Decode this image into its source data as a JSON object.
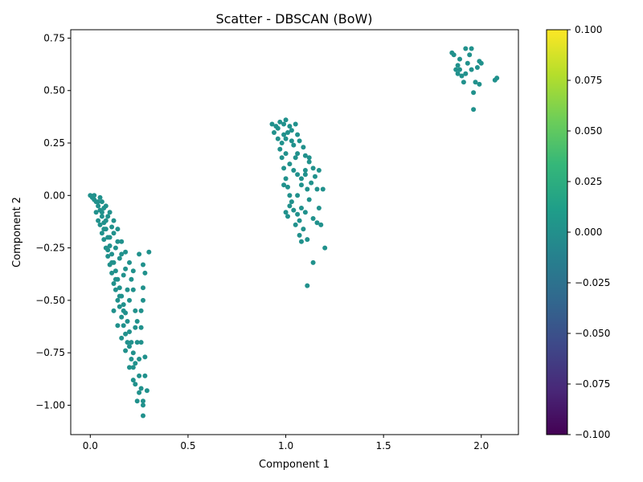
{
  "chart_data": {
    "type": "scatter",
    "title": "Scatter - DBSCAN (BoW)",
    "xlabel": "Component 1",
    "ylabel": "Component 2",
    "xlim": [
      -0.1,
      2.19
    ],
    "ylim": [
      -1.14,
      0.79
    ],
    "xticks": [
      0.0,
      0.5,
      1.0,
      1.5,
      2.0
    ],
    "xtick_labels": [
      "0.0",
      "0.5",
      "1.0",
      "1.5",
      "2.0"
    ],
    "yticks": [
      -1.0,
      -0.75,
      -0.5,
      -0.25,
      0.0,
      0.25,
      0.5,
      0.75
    ],
    "ytick_labels": [
      "−1.00",
      "−0.75",
      "−0.50",
      "−0.25",
      "0.00",
      "0.25",
      "0.50",
      "0.75"
    ],
    "grid": false,
    "marker_color": "#21918c",
    "colorbar": {
      "colormap": "viridis",
      "range": [
        -0.1,
        0.1
      ],
      "ticks": [
        0.1,
        0.075,
        0.05,
        0.025,
        0.0,
        -0.025,
        -0.05,
        -0.075,
        -0.1
      ],
      "tick_labels": [
        "0.100",
        "0.075",
        "0.050",
        "0.025",
        "0.000",
        "−0.025",
        "−0.050",
        "−0.075",
        "−0.100"
      ],
      "colors": [
        "#440154",
        "#482878",
        "#3e4989",
        "#31688e",
        "#26828e",
        "#1f9e89",
        "#35b779",
        "#6ece58",
        "#b5de2b",
        "#fde725"
      ]
    },
    "series": [
      {
        "values": [
          [
            0.0,
            0.0
          ],
          [
            0.01,
            -0.01
          ],
          [
            0.02,
            -0.02
          ],
          [
            0.03,
            -0.03
          ],
          [
            0.04,
            -0.05
          ],
          [
            0.05,
            -0.07
          ],
          [
            0.06,
            -0.1
          ],
          [
            0.07,
            -0.13
          ],
          [
            0.08,
            -0.16
          ],
          [
            0.09,
            -0.2
          ],
          [
            0.1,
            -0.24
          ],
          [
            0.11,
            -0.28
          ],
          [
            0.12,
            -0.32
          ],
          [
            0.13,
            -0.36
          ],
          [
            0.14,
            -0.4
          ],
          [
            0.15,
            -0.44
          ],
          [
            0.16,
            -0.48
          ],
          [
            0.17,
            -0.52
          ],
          [
            0.18,
            -0.56
          ],
          [
            0.19,
            -0.6
          ],
          [
            0.2,
            -0.65
          ],
          [
            0.21,
            -0.7
          ],
          [
            0.22,
            -0.75
          ],
          [
            0.23,
            -0.8
          ],
          [
            0.25,
            -0.86
          ],
          [
            0.26,
            -0.92
          ],
          [
            0.27,
            -0.98
          ],
          [
            0.27,
            -1.05
          ],
          [
            0.02,
            0.0
          ],
          [
            0.05,
            -0.01
          ],
          [
            0.06,
            -0.03
          ],
          [
            0.08,
            -0.05
          ],
          [
            0.1,
            -0.08
          ],
          [
            0.12,
            -0.12
          ],
          [
            0.14,
            -0.16
          ],
          [
            0.16,
            -0.22
          ],
          [
            0.18,
            -0.27
          ],
          [
            0.2,
            -0.32
          ],
          [
            0.22,
            -0.36
          ],
          [
            0.25,
            -0.28
          ],
          [
            0.27,
            -0.33
          ],
          [
            0.28,
            -0.37
          ],
          [
            0.3,
            -0.27
          ],
          [
            0.27,
            -0.44
          ],
          [
            0.27,
            -0.5
          ],
          [
            0.26,
            -0.55
          ],
          [
            0.24,
            -0.6
          ],
          [
            0.26,
            -0.63
          ],
          [
            0.28,
            -0.77
          ],
          [
            0.29,
            -0.93
          ],
          [
            0.28,
            -0.86
          ],
          [
            0.25,
            -0.94
          ],
          [
            0.27,
            -1.0
          ],
          [
            0.04,
            -0.12
          ],
          [
            0.06,
            -0.18
          ],
          [
            0.08,
            -0.25
          ],
          [
            0.1,
            -0.33
          ],
          [
            0.12,
            -0.42
          ],
          [
            0.14,
            -0.5
          ],
          [
            0.16,
            -0.58
          ],
          [
            0.18,
            -0.66
          ],
          [
            0.2,
            -0.72
          ],
          [
            0.22,
            -0.82
          ],
          [
            0.23,
            -0.9
          ],
          [
            0.15,
            -0.3
          ],
          [
            0.17,
            -0.38
          ],
          [
            0.19,
            -0.45
          ],
          [
            0.13,
            -0.25
          ],
          [
            0.11,
            -0.15
          ],
          [
            0.09,
            -0.1
          ],
          [
            0.07,
            -0.06
          ],
          [
            0.03,
            -0.08
          ],
          [
            0.05,
            -0.14
          ],
          [
            0.07,
            -0.21
          ],
          [
            0.09,
            -0.29
          ],
          [
            0.11,
            -0.37
          ],
          [
            0.13,
            -0.45
          ],
          [
            0.15,
            -0.53
          ],
          [
            0.17,
            -0.62
          ],
          [
            0.19,
            -0.7
          ],
          [
            0.21,
            -0.78
          ],
          [
            0.24,
            -0.7
          ],
          [
            0.23,
            -0.55
          ],
          [
            0.22,
            -0.45
          ],
          [
            0.21,
            -0.4
          ],
          [
            0.2,
            -0.5
          ],
          [
            0.18,
            -0.35
          ],
          [
            0.16,
            -0.28
          ],
          [
            0.14,
            -0.22
          ],
          [
            0.12,
            -0.18
          ],
          [
            0.1,
            -0.2
          ],
          [
            0.08,
            -0.12
          ],
          [
            0.06,
            -0.08
          ],
          [
            0.04,
            -0.03
          ],
          [
            0.12,
            -0.55
          ],
          [
            0.14,
            -0.62
          ],
          [
            0.16,
            -0.68
          ],
          [
            0.18,
            -0.74
          ],
          [
            0.2,
            -0.82
          ],
          [
            0.22,
            -0.88
          ],
          [
            0.24,
            -0.98
          ],
          [
            0.25,
            -0.78
          ],
          [
            0.26,
            -0.7
          ],
          [
            0.23,
            -0.63
          ],
          [
            0.17,
            -0.55
          ],
          [
            0.15,
            -0.48
          ],
          [
            0.13,
            -0.4
          ],
          [
            0.11,
            -0.32
          ],
          [
            0.09,
            -0.26
          ],
          [
            0.07,
            -0.16
          ],
          [
            0.93,
            0.34
          ],
          [
            0.95,
            0.33
          ],
          [
            0.97,
            0.35
          ],
          [
            0.99,
            0.34
          ],
          [
            1.0,
            0.36
          ],
          [
            1.02,
            0.33
          ],
          [
            1.03,
            0.31
          ],
          [
            1.05,
            0.34
          ],
          [
            1.06,
            0.29
          ],
          [
            1.07,
            0.26
          ],
          [
            1.09,
            0.23
          ],
          [
            1.1,
            0.19
          ],
          [
            1.12,
            0.16
          ],
          [
            1.14,
            0.13
          ],
          [
            1.17,
            0.12
          ],
          [
            1.15,
            0.09
          ],
          [
            1.16,
            0.03
          ],
          [
            1.19,
            0.03
          ],
          [
            1.13,
            0.06
          ],
          [
            1.11,
            0.03
          ],
          [
            0.94,
            0.3
          ],
          [
            0.96,
            0.27
          ],
          [
            0.97,
            0.22
          ],
          [
            0.98,
            0.18
          ],
          [
            0.99,
            0.13
          ],
          [
            1.0,
            0.08
          ],
          [
            1.01,
            0.04
          ],
          [
            1.02,
            0.0
          ],
          [
            1.03,
            -0.03
          ],
          [
            1.04,
            -0.07
          ],
          [
            1.06,
            -0.09
          ],
          [
            1.08,
            -0.06
          ],
          [
            1.1,
            -0.08
          ],
          [
            1.07,
            -0.12
          ],
          [
            1.05,
            -0.14
          ],
          [
            1.07,
            -0.19
          ],
          [
            1.09,
            -0.16
          ],
          [
            1.11,
            -0.21
          ],
          [
            1.08,
            -0.22
          ],
          [
            1.14,
            -0.11
          ],
          [
            1.16,
            -0.13
          ],
          [
            1.18,
            -0.14
          ],
          [
            1.17,
            -0.06
          ],
          [
            1.2,
            -0.25
          ],
          [
            1.14,
            -0.32
          ],
          [
            1.11,
            -0.43
          ],
          [
            0.98,
            0.25
          ],
          [
            1.0,
            0.2
          ],
          [
            1.02,
            0.15
          ],
          [
            1.04,
            0.12
          ],
          [
            1.06,
            0.1
          ],
          [
            1.08,
            0.05
          ],
          [
            1.1,
            0.12
          ],
          [
            1.12,
            0.18
          ],
          [
            1.04,
            0.24
          ],
          [
            1.06,
            0.2
          ],
          [
            1.01,
            0.3
          ],
          [
            0.99,
            0.29
          ],
          [
            1.03,
            0.26
          ],
          [
            1.05,
            0.18
          ],
          [
            0.96,
            0.32
          ],
          [
            1.0,
            -0.08
          ],
          [
            1.02,
            -0.05
          ],
          [
            0.99,
            0.05
          ],
          [
            1.01,
            -0.1
          ],
          [
            1.06,
            0.0
          ],
          [
            1.08,
            0.08
          ],
          [
            1.12,
            -0.02
          ],
          [
            1.1,
            0.1
          ],
          [
            1.0,
            0.27
          ],
          [
            1.85,
            0.68
          ],
          [
            1.86,
            0.67
          ],
          [
            1.87,
            0.6
          ],
          [
            1.88,
            0.62
          ],
          [
            1.89,
            0.65
          ],
          [
            1.9,
            0.57
          ],
          [
            1.91,
            0.54
          ],
          [
            1.89,
            0.6
          ],
          [
            1.92,
            0.7
          ],
          [
            1.93,
            0.63
          ],
          [
            1.95,
            0.7
          ],
          [
            1.95,
            0.6
          ],
          [
            1.96,
            0.49
          ],
          [
            1.97,
            0.54
          ],
          [
            1.98,
            0.61
          ],
          [
            1.99,
            0.64
          ],
          [
            2.0,
            0.63
          ],
          [
            1.99,
            0.53
          ],
          [
            1.96,
            0.41
          ],
          [
            2.07,
            0.55
          ],
          [
            2.08,
            0.56
          ],
          [
            1.94,
            0.67
          ],
          [
            1.92,
            0.58
          ],
          [
            1.88,
            0.58
          ]
        ]
      }
    ]
  }
}
